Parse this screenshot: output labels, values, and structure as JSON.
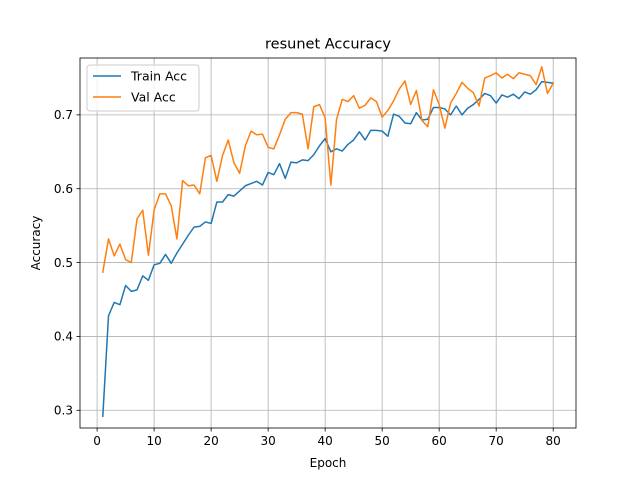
{
  "chart_data": {
    "type": "line",
    "title": "resunet Accuracy",
    "xlabel": "Epoch",
    "ylabel": "Accuracy",
    "xlim": [
      -3,
      84
    ],
    "ylim": [
      0.276,
      0.777
    ],
    "xticks": [
      0,
      10,
      20,
      30,
      40,
      50,
      60,
      70,
      80
    ],
    "yticks": [
      0.3,
      0.4,
      0.5,
      0.6,
      0.7
    ],
    "ytick_labels": [
      "0.3",
      "0.4",
      "0.5",
      "0.6",
      "0.7"
    ],
    "grid": true,
    "legend": "upper left",
    "x": [
      1,
      2,
      3,
      4,
      5,
      6,
      7,
      8,
      9,
      10,
      11,
      12,
      13,
      14,
      15,
      16,
      17,
      18,
      19,
      20,
      21,
      22,
      23,
      24,
      25,
      26,
      27,
      28,
      29,
      30,
      31,
      32,
      33,
      34,
      35,
      36,
      37,
      38,
      39,
      40,
      41,
      42,
      43,
      44,
      45,
      46,
      47,
      48,
      49,
      50,
      51,
      52,
      53,
      54,
      55,
      56,
      57,
      58,
      59,
      60,
      61,
      62,
      63,
      64,
      65,
      66,
      67,
      68,
      69,
      70,
      71,
      72,
      73,
      74,
      75,
      76,
      77,
      78,
      79,
      80
    ],
    "series": [
      {
        "name": "Train Acc",
        "color": "#1f77b4",
        "values": [
          0.292,
          0.428,
          0.446,
          0.443,
          0.469,
          0.461,
          0.463,
          0.482,
          0.476,
          0.497,
          0.499,
          0.511,
          0.499,
          0.513,
          0.525,
          0.537,
          0.548,
          0.549,
          0.555,
          0.553,
          0.582,
          0.582,
          0.592,
          0.59,
          0.597,
          0.604,
          0.607,
          0.61,
          0.605,
          0.622,
          0.619,
          0.634,
          0.614,
          0.636,
          0.635,
          0.639,
          0.638,
          0.646,
          0.658,
          0.668,
          0.65,
          0.654,
          0.651,
          0.66,
          0.666,
          0.677,
          0.666,
          0.679,
          0.679,
          0.678,
          0.671,
          0.701,
          0.698,
          0.689,
          0.688,
          0.703,
          0.693,
          0.694,
          0.71,
          0.71,
          0.708,
          0.7,
          0.712,
          0.7,
          0.709,
          0.714,
          0.721,
          0.729,
          0.726,
          0.716,
          0.727,
          0.724,
          0.728,
          0.722,
          0.731,
          0.728,
          0.734,
          0.745,
          0.744,
          0.743
        ]
      },
      {
        "name": "Val Acc",
        "color": "#ff7f0e",
        "values": [
          0.487,
          0.532,
          0.509,
          0.525,
          0.504,
          0.5,
          0.559,
          0.571,
          0.51,
          0.571,
          0.593,
          0.593,
          0.577,
          0.532,
          0.611,
          0.604,
          0.605,
          0.593,
          0.642,
          0.645,
          0.61,
          0.645,
          0.666,
          0.635,
          0.621,
          0.658,
          0.678,
          0.673,
          0.674,
          0.656,
          0.654,
          0.673,
          0.694,
          0.703,
          0.703,
          0.701,
          0.654,
          0.711,
          0.714,
          0.696,
          0.605,
          0.694,
          0.721,
          0.718,
          0.726,
          0.709,
          0.713,
          0.723,
          0.718,
          0.697,
          0.706,
          0.719,
          0.735,
          0.746,
          0.714,
          0.733,
          0.692,
          0.684,
          0.734,
          0.714,
          0.682,
          0.716,
          0.729,
          0.744,
          0.736,
          0.73,
          0.712,
          0.75,
          0.753,
          0.757,
          0.75,
          0.755,
          0.749,
          0.757,
          0.755,
          0.753,
          0.741,
          0.765,
          0.729,
          0.743
        ]
      }
    ]
  }
}
